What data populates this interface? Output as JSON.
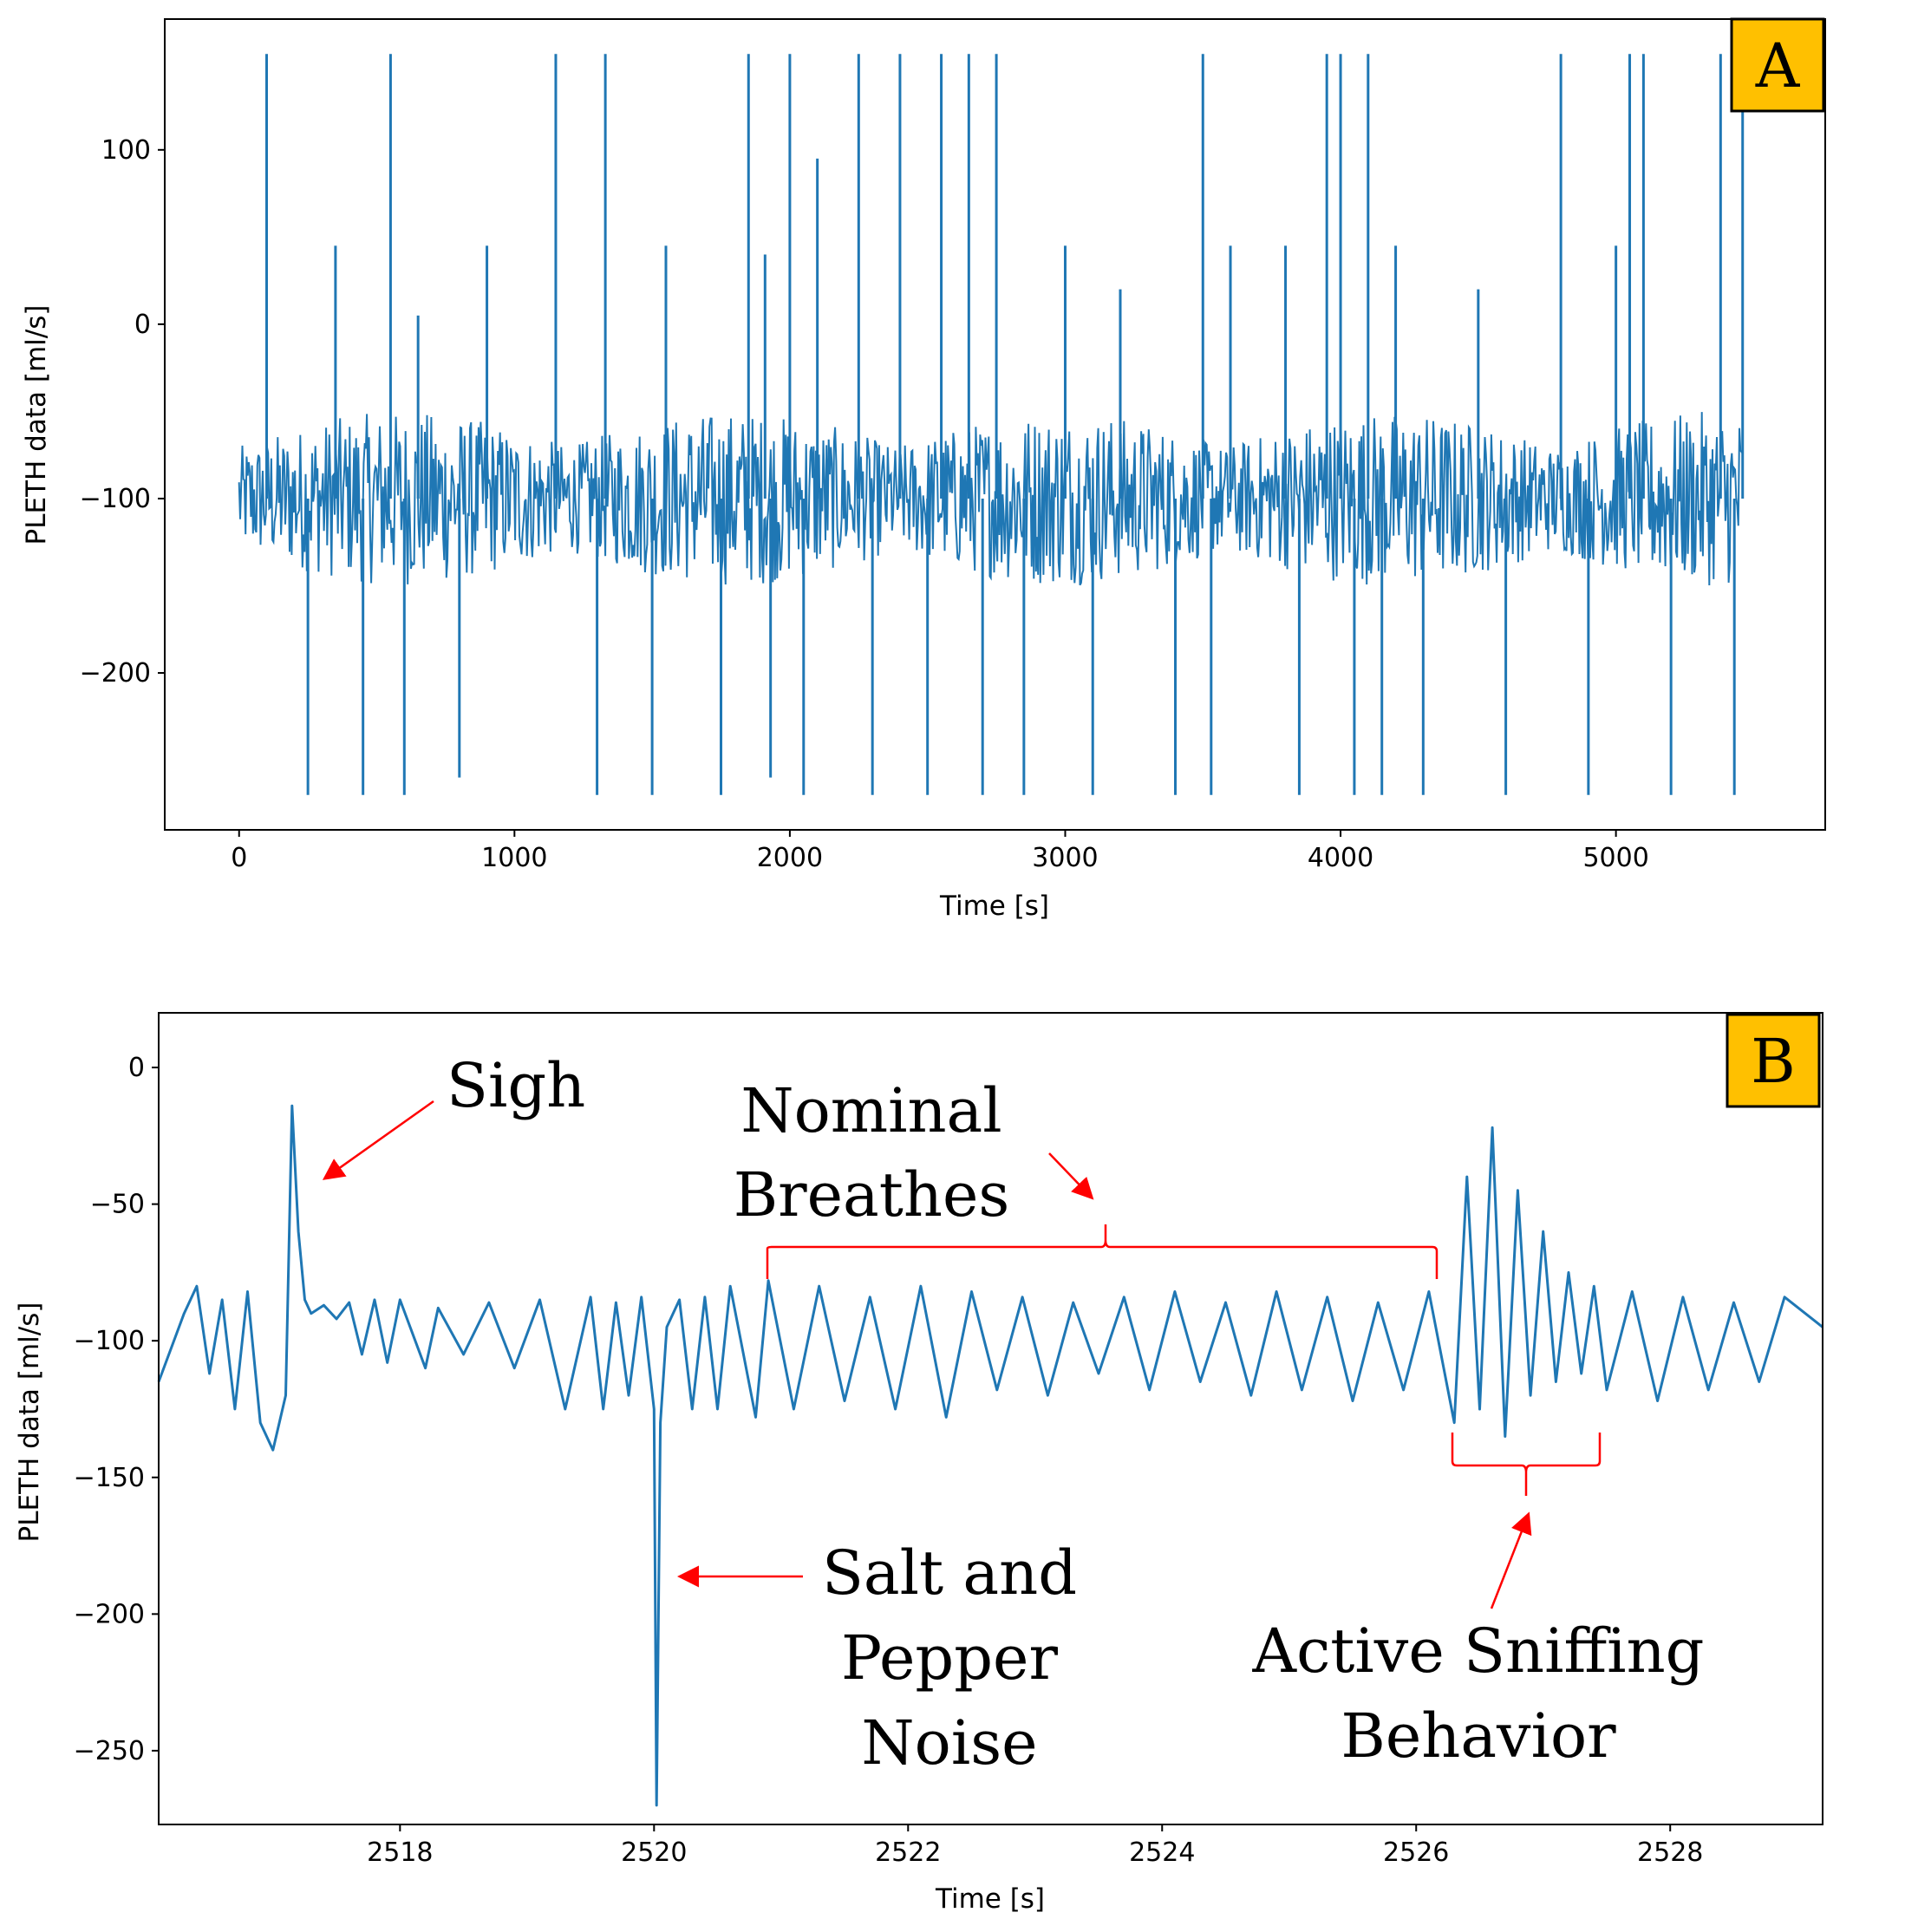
{
  "colors": {
    "line": "#1f77b4",
    "annotation": "#ff0000",
    "badge": "#ffc000"
  },
  "chart_data": [
    {
      "type": "line",
      "panel_label": "A",
      "xlabel": "Time [s]",
      "ylabel": "PLETH data [ml/s]",
      "xlim": [
        -270,
        5760
      ],
      "ylim": [
        -290,
        175
      ],
      "xticks": [
        0,
        1000,
        2000,
        3000,
        4000,
        5000
      ],
      "xtick_labels": [
        "0",
        "1000",
        "2000",
        "3000",
        "4000",
        "5000"
      ],
      "yticks": [
        100,
        0,
        -100,
        -200
      ],
      "ytick_labels": [
        "100",
        "0",
        "−100",
        "−200"
      ],
      "grid": false,
      "series": [
        {
          "x": [
            0,
            100,
            250,
            350,
            450,
            550,
            600,
            650,
            800,
            900,
            1000,
            1150,
            1300,
            1330,
            1400,
            1500,
            1550,
            1650,
            1750,
            1850,
            1910,
            1930,
            2000,
            2050,
            2100,
            2150,
            2250,
            2300,
            2400,
            2500,
            2550,
            2650,
            2700,
            2750,
            2850,
            2900,
            3000,
            3100,
            3200,
            3300,
            3400,
            3500,
            3530,
            3600,
            3700,
            3800,
            3850,
            3950,
            4000,
            4050,
            4100,
            4150,
            4200,
            4300,
            4400,
            4500,
            4600,
            4700,
            4800,
            4900,
            5000,
            5050,
            5100,
            5200,
            5300,
            5380,
            5430,
            5460
          ],
          "y": [
            -100,
            155,
            -270,
            45,
            -270,
            155,
            -270,
            5,
            -260,
            45,
            -100,
            155,
            -270,
            155,
            -100,
            -270,
            45,
            -100,
            -270,
            155,
            40,
            -260,
            155,
            -270,
            95,
            -100,
            155,
            -270,
            155,
            -270,
            155,
            155,
            -270,
            155,
            -270,
            -100,
            45,
            -270,
            20,
            -100,
            -270,
            155,
            -270,
            45,
            -100,
            45,
            -270,
            155,
            155,
            -270,
            155,
            -270,
            45,
            -270,
            -100,
            20,
            -270,
            -100,
            155,
            -270,
            45,
            155,
            155,
            -270,
            -100,
            155,
            -270,
            155
          ]
        }
      ]
    },
    {
      "type": "line",
      "panel_label": "B",
      "xlabel": "Time [s]",
      "ylabel": "PLETH data [ml/s]",
      "xlim": [
        2516.1,
        2529.2
      ],
      "ylim": [
        -277,
        20
      ],
      "xticks": [
        2518,
        2520,
        2522,
        2524,
        2526,
        2528
      ],
      "xtick_labels": [
        "2518",
        "2520",
        "2522",
        "2524",
        "2526",
        "2528"
      ],
      "yticks": [
        0,
        -50,
        -100,
        -150,
        -200,
        -250
      ],
      "ytick_labels": [
        "0",
        "−50",
        "−100",
        "−150",
        "−200",
        "−250"
      ],
      "grid": false,
      "series": [
        {
          "x": [
            2516.1,
            2516.3,
            2516.4,
            2516.5,
            2516.6,
            2516.7,
            2516.8,
            2516.9,
            2517.0,
            2517.1,
            2517.15,
            2517.2,
            2517.25,
            2517.3,
            2517.4,
            2517.5,
            2517.6,
            2517.7,
            2517.8,
            2517.9,
            2518.0,
            2518.2,
            2518.3,
            2518.5,
            2518.7,
            2518.9,
            2519.1,
            2519.3,
            2519.5,
            2519.6,
            2519.7,
            2519.8,
            2519.9,
            2520.0,
            2520.02,
            2520.05,
            2520.1,
            2520.2,
            2520.3,
            2520.4,
            2520.5,
            2520.6,
            2520.8,
            2520.9,
            2521.1,
            2521.3,
            2521.5,
            2521.7,
            2521.9,
            2522.1,
            2522.3,
            2522.5,
            2522.7,
            2522.9,
            2523.1,
            2523.3,
            2523.5,
            2523.7,
            2523.9,
            2524.1,
            2524.3,
            2524.5,
            2524.7,
            2524.9,
            2525.1,
            2525.3,
            2525.5,
            2525.7,
            2525.9,
            2526.1,
            2526.3,
            2526.4,
            2526.5,
            2526.6,
            2526.7,
            2526.8,
            2526.9,
            2527.0,
            2527.1,
            2527.2,
            2527.3,
            2527.4,
            2527.5,
            2527.7,
            2527.9,
            2528.1,
            2528.3,
            2528.5,
            2528.7,
            2528.9,
            2529.2
          ],
          "y": [
            -115,
            -90,
            -80,
            -112,
            -85,
            -125,
            -82,
            -130,
            -140,
            -120,
            -14,
            -60,
            -85,
            -90,
            -87,
            -92,
            -86,
            -105,
            -85,
            -108,
            -85,
            -110,
            -88,
            -105,
            -86,
            -110,
            -85,
            -125,
            -84,
            -125,
            -86,
            -120,
            -84,
            -125,
            -270,
            -130,
            -95,
            -85,
            -125,
            -84,
            -125,
            -80,
            -128,
            -78,
            -125,
            -80,
            -122,
            -84,
            -125,
            -80,
            -128,
            -82,
            -118,
            -84,
            -120,
            -86,
            -112,
            -84,
            -118,
            -82,
            -115,
            -86,
            -120,
            -82,
            -118,
            -84,
            -122,
            -86,
            -118,
            -82,
            -130,
            -40,
            -125,
            -22,
            -135,
            -45,
            -120,
            -60,
            -115,
            -75,
            -112,
            -80,
            -118,
            -82,
            -122,
            -84,
            -118,
            -86,
            -115,
            -84,
            -95
          ]
        }
      ]
    }
  ],
  "annotations": {
    "sigh": "Sigh",
    "nominal_line1": "Nominal",
    "nominal_line2": "Breathes",
    "salt_line1": "Salt and",
    "salt_line2": "Pepper",
    "salt_line3": "Noise",
    "sniff_line1": "Active Sniffing",
    "sniff_line2": "Behavior"
  }
}
